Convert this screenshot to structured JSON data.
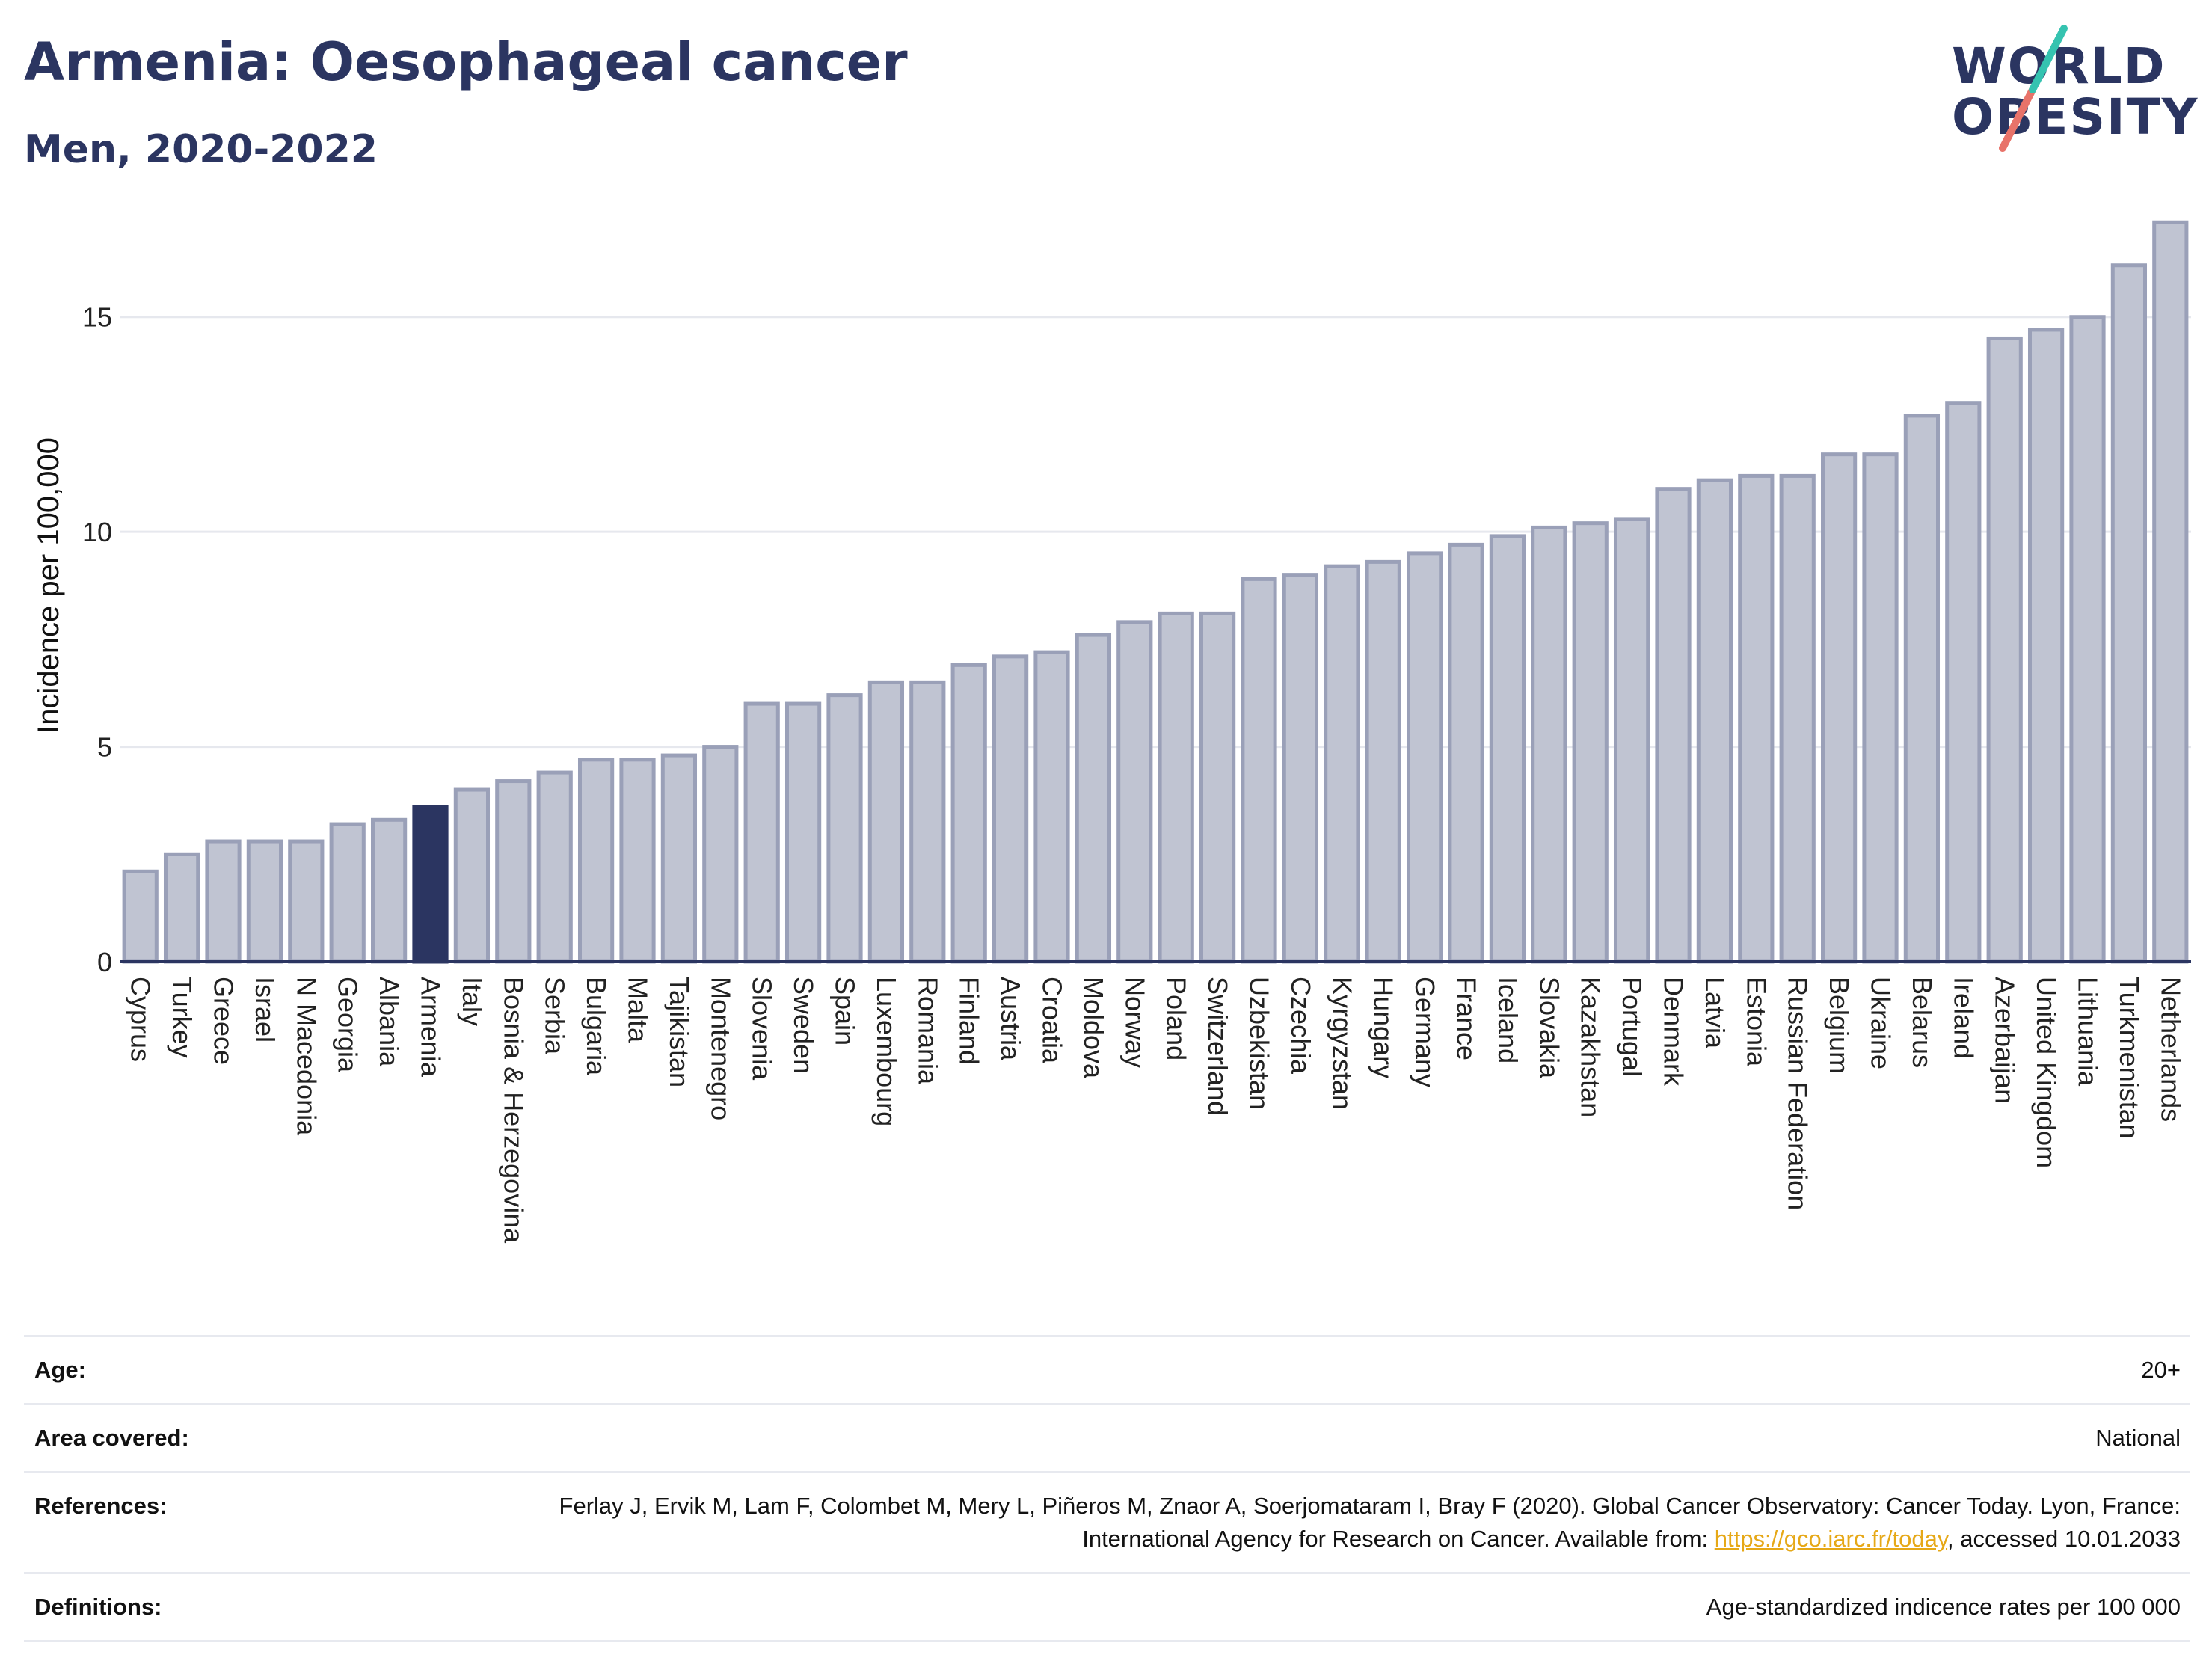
{
  "header": {
    "title": "Armenia: Oesophageal cancer",
    "subtitle": "Men, 2020-2022"
  },
  "logo": {
    "line1": "WORLD",
    "line2": "OBESITY"
  },
  "colors": {
    "bar_default": "#c0c4d2",
    "bar_stroke": "#9aa0b8",
    "bar_highlight": "#2b3561",
    "grid": "#e6e8ee",
    "axis": "#2b3561",
    "link": "#e6a817"
  },
  "chart_data": {
    "type": "bar",
    "title": "Armenia: Oesophageal cancer",
    "subtitle": "Men, 2020-2022",
    "xlabel": "",
    "ylabel": "Incidence per 100,000",
    "ylim": [
      0,
      17.5
    ],
    "yticks": [
      0,
      5,
      10,
      15
    ],
    "grid": true,
    "highlight": "Armenia",
    "categories": [
      "Cyprus",
      "Turkey",
      "Greece",
      "Israel",
      "N Macedonia",
      "Georgia",
      "Albania",
      "Armenia",
      "Italy",
      "Bosnia & Herzegovina",
      "Serbia",
      "Bulgaria",
      "Malta",
      "Tajikistan",
      "Montenegro",
      "Slovenia",
      "Sweden",
      "Spain",
      "Luxembourg",
      "Romania",
      "Finland",
      "Austria",
      "Croatia",
      "Moldova",
      "Norway",
      "Poland",
      "Switzerland",
      "Uzbekistan",
      "Czechia",
      "Kyrgyzstan",
      "Hungary",
      "Germany",
      "France",
      "Iceland",
      "Slovakia",
      "Kazakhstan",
      "Portugal",
      "Denmark",
      "Latvia",
      "Estonia",
      "Russian Federation",
      "Belgium",
      "Ukraine",
      "Belarus",
      "Ireland",
      "Azerbaijan",
      "United Kingdom",
      "Lithuania",
      "Turkmenistan",
      "Netherlands"
    ],
    "values": [
      2.1,
      2.5,
      2.8,
      2.8,
      2.8,
      3.2,
      3.3,
      3.6,
      4.0,
      4.2,
      4.4,
      4.7,
      4.7,
      4.8,
      5.0,
      6.0,
      6.0,
      6.2,
      6.5,
      6.5,
      6.9,
      7.1,
      7.2,
      7.6,
      7.9,
      8.1,
      8.1,
      8.9,
      9.0,
      9.2,
      9.3,
      9.5,
      9.7,
      9.9,
      10.1,
      10.2,
      10.3,
      11.0,
      11.2,
      11.3,
      11.3,
      11.8,
      11.8,
      12.7,
      13.0,
      14.5,
      14.7,
      15.0,
      16.2,
      17.2
    ]
  },
  "info": {
    "age_label": "Age:",
    "age_value": "20+",
    "area_label": "Area covered:",
    "area_value": "National",
    "references_label": "References:",
    "references_text": "Ferlay J, Ervik M, Lam F, Colombet M, Mery L, Piñeros M, Znaor A, Soerjomataram I, Bray F (2020). Global Cancer Observatory: Cancer Today. Lyon, France: International Agency for Research on Cancer. Available from: ",
    "references_link": "https://gco.iarc.fr/today",
    "references_suffix": ", accessed 10.01.2033",
    "definitions_label": "Definitions:",
    "definitions_value": "Age-standardized indicence rates per 100 000"
  }
}
